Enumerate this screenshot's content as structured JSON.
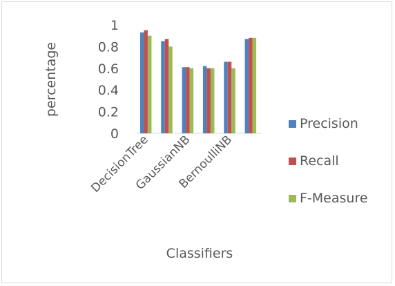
{
  "chart_data": {
    "type": "bar",
    "title": "",
    "xlabel": "Classifiers",
    "ylabel": "percentage",
    "ylim": [
      0,
      1
    ],
    "yticks": [
      "0",
      "0.2",
      "0.4",
      "0.6",
      "0.8",
      "1"
    ],
    "grid": false,
    "legend_position": "right",
    "categories": [
      "DecisionTree",
      "",
      "GaussianNB",
      "",
      "BernoulliNB",
      ""
    ],
    "series": [
      {
        "name": "Precision",
        "color": "#4f81bd",
        "values": [
          0.93,
          0.85,
          0.61,
          0.62,
          0.66,
          0.87
        ]
      },
      {
        "name": "Recall",
        "color": "#c0504d",
        "values": [
          0.95,
          0.87,
          0.61,
          0.6,
          0.66,
          0.88
        ]
      },
      {
        "name": "F-Measure",
        "color": "#9bbb59",
        "values": [
          0.9,
          0.8,
          0.6,
          0.6,
          0.6,
          0.88
        ]
      }
    ]
  }
}
